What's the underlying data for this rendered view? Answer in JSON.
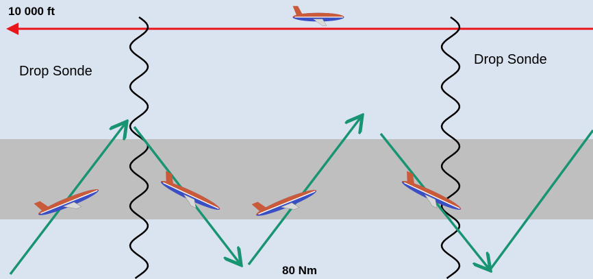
{
  "altitude_label": "10 000 ft",
  "drop_sonde_labels": [
    "Drop Sonde",
    "Drop Sonde"
  ],
  "distance_label": "80 Nm"
}
